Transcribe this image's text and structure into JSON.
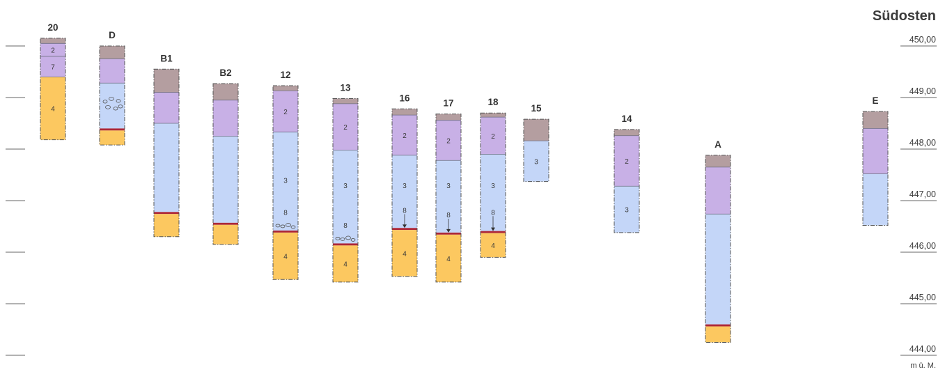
{
  "diagram": {
    "title": "Südosten",
    "elevation_unit": "m ü. M.",
    "elevation_ticks": [
      {
        "value": 450,
        "label": "450,00"
      },
      {
        "value": 449,
        "label": "449,00"
      },
      {
        "value": 448,
        "label": "448,00"
      },
      {
        "value": 447,
        "label": "447,00"
      },
      {
        "value": 446,
        "label": "446,00"
      },
      {
        "value": 445,
        "label": "445,00"
      },
      {
        "value": 444,
        "label": "444,00"
      }
    ],
    "colors": {
      "1": "#b49ea0",
      "2": "#c8b0e6",
      "3": "#c4d6f8",
      "4": "#fcc860",
      "7": "#c8b0e6",
      "8": "#ad2838",
      "outline": "#555555"
    },
    "boreholes": [
      {
        "id": "20",
        "layers": [
          {
            "type": "1",
            "top": 450.15,
            "bottom": 450.05
          },
          {
            "type": "2",
            "top": 450.05,
            "bottom": 449.8,
            "label": "2"
          },
          {
            "type": "7",
            "top": 449.8,
            "bottom": 449.4,
            "label": "7"
          },
          {
            "type": "4",
            "top": 449.4,
            "bottom": 448.18,
            "label": "4"
          }
        ]
      },
      {
        "id": "D",
        "layers": [
          {
            "type": "1",
            "top": 450.0,
            "bottom": 449.75
          },
          {
            "type": "2",
            "top": 449.75,
            "bottom": 449.28
          },
          {
            "type": "3",
            "top": 449.28,
            "bottom": 448.4,
            "pebbles": true
          },
          {
            "type": "8",
            "top": 448.4,
            "bottom": 448.36
          },
          {
            "type": "4",
            "top": 448.36,
            "bottom": 448.08
          }
        ]
      },
      {
        "id": "B1",
        "layers": [
          {
            "type": "1",
            "top": 449.55,
            "bottom": 449.1
          },
          {
            "type": "2",
            "top": 449.1,
            "bottom": 448.5
          },
          {
            "type": "3",
            "top": 448.5,
            "bottom": 446.78
          },
          {
            "type": "8",
            "top": 446.78,
            "bottom": 446.74
          },
          {
            "type": "4",
            "top": 446.74,
            "bottom": 446.3
          }
        ]
      },
      {
        "id": "B2",
        "layers": [
          {
            "type": "1",
            "top": 449.27,
            "bottom": 448.95
          },
          {
            "type": "2",
            "top": 448.95,
            "bottom": 448.25
          },
          {
            "type": "3",
            "top": 448.25,
            "bottom": 446.57
          },
          {
            "type": "8",
            "top": 446.57,
            "bottom": 446.53
          },
          {
            "type": "4",
            "top": 446.53,
            "bottom": 446.15
          }
        ]
      },
      {
        "id": "12",
        "layers": [
          {
            "type": "1",
            "top": 449.23,
            "bottom": 449.13
          },
          {
            "type": "2",
            "top": 449.13,
            "bottom": 448.33,
            "label": "2"
          },
          {
            "type": "3",
            "top": 448.33,
            "bottom": 446.42,
            "label": "3",
            "label_at": 447.4
          },
          {
            "type": "8",
            "top": 446.42,
            "bottom": 446.38,
            "label": "8",
            "label_at": 446.78,
            "pebbles": true
          },
          {
            "type": "4",
            "top": 446.38,
            "bottom": 445.47,
            "label": "4"
          }
        ]
      },
      {
        "id": "13",
        "layers": [
          {
            "type": "1",
            "top": 448.98,
            "bottom": 448.88
          },
          {
            "type": "2",
            "top": 448.88,
            "bottom": 447.98,
            "label": "2"
          },
          {
            "type": "3",
            "top": 447.98,
            "bottom": 446.17,
            "label": "3",
            "label_at": 447.3
          },
          {
            "type": "8",
            "top": 446.17,
            "bottom": 446.13,
            "label": "8",
            "label_at": 446.53,
            "pebbles": true
          },
          {
            "type": "4",
            "top": 446.13,
            "bottom": 445.42,
            "label": "4"
          }
        ]
      },
      {
        "id": "16",
        "layers": [
          {
            "type": "1",
            "top": 448.78,
            "bottom": 448.66
          },
          {
            "type": "2",
            "top": 448.66,
            "bottom": 447.88,
            "label": "2"
          },
          {
            "type": "3",
            "top": 447.88,
            "bottom": 446.47,
            "label": "3",
            "label_at": 447.3
          },
          {
            "type": "8",
            "top": 446.47,
            "bottom": 446.43,
            "label": "8",
            "label_at": 446.82,
            "arrow": true
          },
          {
            "type": "4",
            "top": 446.43,
            "bottom": 445.53,
            "label": "4"
          }
        ]
      },
      {
        "id": "17",
        "layers": [
          {
            "type": "1",
            "top": 448.68,
            "bottom": 448.56
          },
          {
            "type": "2",
            "top": 448.56,
            "bottom": 447.78,
            "label": "2"
          },
          {
            "type": "3",
            "top": 447.78,
            "bottom": 446.38,
            "label": "3",
            "label_at": 447.3
          },
          {
            "type": "8",
            "top": 446.38,
            "bottom": 446.34,
            "label": "8",
            "label_at": 446.73,
            "arrow": true
          },
          {
            "type": "4",
            "top": 446.34,
            "bottom": 445.42,
            "label": "4"
          }
        ]
      },
      {
        "id": "18",
        "layers": [
          {
            "type": "1",
            "top": 448.7,
            "bottom": 448.62
          },
          {
            "type": "2",
            "top": 448.62,
            "bottom": 447.9,
            "label": "2"
          },
          {
            "type": "3",
            "top": 447.9,
            "bottom": 446.41,
            "label": "3",
            "label_at": 447.3
          },
          {
            "type": "8",
            "top": 446.41,
            "bottom": 446.37,
            "label": "8",
            "label_at": 446.78,
            "arrow": true
          },
          {
            "type": "4",
            "top": 446.37,
            "bottom": 445.9,
            "label": "4"
          }
        ]
      },
      {
        "id": "15",
        "layers": [
          {
            "type": "1",
            "top": 448.58,
            "bottom": 448.16
          },
          {
            "type": "3",
            "top": 448.16,
            "bottom": 447.37,
            "label": "3"
          }
        ]
      },
      {
        "id": "14",
        "layers": [
          {
            "type": "1",
            "top": 448.38,
            "bottom": 448.26
          },
          {
            "type": "2",
            "top": 448.26,
            "bottom": 447.28,
            "label": "2"
          },
          {
            "type": "3",
            "top": 447.28,
            "bottom": 446.38,
            "label": "3"
          }
        ]
      },
      {
        "id": "A",
        "layers": [
          {
            "type": "1",
            "top": 447.88,
            "bottom": 447.65
          },
          {
            "type": "2",
            "top": 447.65,
            "bottom": 446.74
          },
          {
            "type": "3",
            "top": 446.74,
            "bottom": 444.6
          },
          {
            "type": "8",
            "top": 444.6,
            "bottom": 444.56
          },
          {
            "type": "4",
            "top": 444.56,
            "bottom": 444.25
          }
        ]
      },
      {
        "id": "E",
        "layers": [
          {
            "type": "1",
            "top": 448.73,
            "bottom": 448.4
          },
          {
            "type": "2",
            "top": 448.4,
            "bottom": 447.52
          },
          {
            "type": "3",
            "top": 447.52,
            "bottom": 446.52
          }
        ]
      }
    ]
  }
}
